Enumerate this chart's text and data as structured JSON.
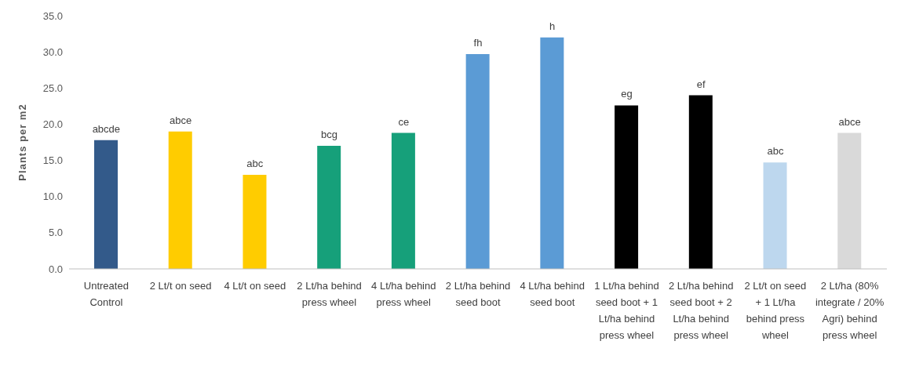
{
  "chart_data": {
    "type": "bar",
    "ylabel": "Plants per m2",
    "categories": [
      "Untreated Control",
      "2 Lt/t on seed",
      "4 Lt/t on seed",
      "2 Lt/ha behind press wheel",
      "4 Lt/ha behind press wheel",
      "2 Lt/ha behind seed boot",
      "4 Lt/ha behind seed boot",
      "1 Lt/ha behind seed boot + 1 Lt/ha behind press wheel",
      "2 Lt/ha behind seed boot + 2 Lt/ha behind press wheel",
      "2 Lt/t on seed + 1 Lt/ha behind press wheel",
      "2 Lt/ha (80% integrate / 20% Agri) behind press wheel"
    ],
    "values": [
      17.8,
      19.0,
      13.0,
      17.0,
      18.8,
      29.7,
      32.0,
      22.6,
      24.0,
      14.7,
      18.8
    ],
    "colors": [
      "#335a8a",
      "#ffcc00",
      "#ffcc00",
      "#16a07a",
      "#16a07a",
      "#5b9bd5",
      "#5b9bd5",
      "#000000",
      "#000000",
      "#bdd7ee",
      "#d9d9d9"
    ],
    "ylim": [
      0,
      35
    ],
    "yticks": [
      {
        "value": 0,
        "label": "0.0"
      },
      {
        "value": 5,
        "label": "5.0"
      },
      {
        "value": 10,
        "label": "10.0"
      },
      {
        "value": 15,
        "label": "15.0"
      },
      {
        "value": 20,
        "label": "20.0"
      },
      {
        "value": 25,
        "label": "25.0"
      },
      {
        "value": 30,
        "label": "30.0"
      },
      {
        "value": 35,
        "label": "35.0"
      }
    ],
    "grid": false,
    "legend": false,
    "annotations": [
      {
        "text": "abcde",
        "x": "Untreated Control",
        "y": 17.8
      },
      {
        "text": "abce",
        "x": "2 Lt/t on seed",
        "y": 19.0
      },
      {
        "text": "abc",
        "x": "4 Lt/t on seed",
        "y": 13.0
      },
      {
        "text": "bcg",
        "x": "2 Lt/ha behind press wheel",
        "y": 17.0
      },
      {
        "text": "ce",
        "x": "4 Lt/ha behind press wheel",
        "y": 18.8
      },
      {
        "text": "fh",
        "x": "2 Lt/ha behind seed boot",
        "y": 29.7
      },
      {
        "text": "h",
        "x": "4 Lt/ha behind seed boot",
        "y": 32.0
      },
      {
        "text": "eg",
        "x": "1 Lt/ha behind seed boot + 1 Lt/ha behind press wheel",
        "y": 22.6
      },
      {
        "text": "ef",
        "x": "2 Lt/ha behind seed boot + 2 Lt/ha behind press wheel",
        "y": 24.0
      },
      {
        "text": "abc",
        "x": "2 Lt/t on seed + 1 Lt/ha behind press wheel",
        "y": 14.7
      },
      {
        "text": "abce",
        "x": "2 Lt/ha (80% integrate / 20% Agri) behind press wheel",
        "y": 18.8
      }
    ]
  }
}
